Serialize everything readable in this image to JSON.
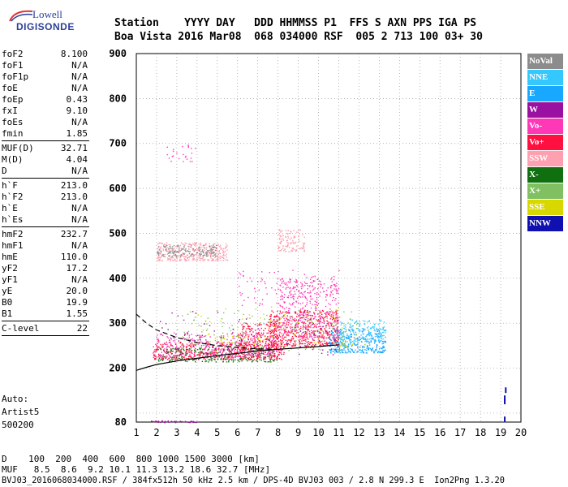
{
  "logo": {
    "line1": "Lowell",
    "line2": "DIGISONDE"
  },
  "header": {
    "row1": "Station    YYYY DAY   DDD HHMMSS P1  FFS S AXN PPS IGA PS",
    "row2": "Boa Vista 2016 Mar08  068 034000 RSF  005 2 713 100 03+ 30"
  },
  "params": [
    {
      "k": "foF2",
      "v": "8.100"
    },
    {
      "k": "foF1",
      "v": "N/A"
    },
    {
      "k": "foF1p",
      "v": "N/A"
    },
    {
      "k": "foE",
      "v": "N/A"
    },
    {
      "k": "foEp",
      "v": "0.43"
    },
    {
      "k": "fxI",
      "v": "9.10"
    },
    {
      "k": "foEs",
      "v": "N/A"
    },
    {
      "k": "fmin",
      "v": "1.85"
    },
    {
      "k": "MUF(D)",
      "v": "32.71"
    },
    {
      "k": "M(D)",
      "v": "4.04"
    },
    {
      "k": "D",
      "v": "N/A"
    },
    {
      "k": "h`F",
      "v": "213.0"
    },
    {
      "k": "h`F2",
      "v": "213.0"
    },
    {
      "k": "h`E",
      "v": "N/A"
    },
    {
      "k": "h`Es",
      "v": "N/A"
    },
    {
      "k": "hmF2",
      "v": "232.7"
    },
    {
      "k": "hmF1",
      "v": "N/A"
    },
    {
      "k": "hmE",
      "v": "110.0"
    },
    {
      "k": "yF2",
      "v": "17.2"
    },
    {
      "k": "yF1",
      "v": "N/A"
    },
    {
      "k": "yE",
      "v": "20.0"
    },
    {
      "k": "B0",
      "v": "19.9"
    },
    {
      "k": "B1",
      "v": "1.55"
    },
    {
      "k": "C-level",
      "v": "22"
    }
  ],
  "auto": {
    "l1": "Auto:",
    "l2": "Artist5",
    "l3": "500200"
  },
  "legend": [
    {
      "label": "NoVal",
      "color": "#8c8c8c"
    },
    {
      "label": "NNE",
      "color": "#35c8ff"
    },
    {
      "label": "E",
      "color": "#18a8ff"
    },
    {
      "label": "W",
      "color": "#9a10a0"
    },
    {
      "label": "Vo-",
      "color": "#ff38b8"
    },
    {
      "label": "Vo+",
      "color": "#ff1040"
    },
    {
      "label": "SSW",
      "color": "#ffa0b0"
    },
    {
      "label": "X-",
      "color": "#107010"
    },
    {
      "label": "X+",
      "color": "#80c060"
    },
    {
      "label": "SSE",
      "color": "#d8d800"
    },
    {
      "label": "NNW",
      "color": "#1010b0"
    }
  ],
  "chart_data": {
    "type": "scatter",
    "xlim": [
      1,
      20
    ],
    "ylim": [
      80,
      900
    ],
    "x_ticks": [
      1,
      2,
      3,
      4,
      5,
      6,
      7,
      8,
      9,
      10,
      11,
      12,
      13,
      14,
      15,
      16,
      17,
      18,
      19,
      20
    ],
    "y_ticks": [
      100,
      200,
      300,
      400,
      500,
      600,
      700,
      800,
      900
    ],
    "y_tick_labels": [
      "",
      "200",
      "300",
      "400",
      "500",
      "600",
      "700",
      "800",
      "900"
    ],
    "y_bottom_label": "80",
    "grid": true,
    "profile_solid": [
      [
        1,
        195
      ],
      [
        1.5,
        202
      ],
      [
        2,
        208
      ],
      [
        3,
        216
      ],
      [
        4,
        222
      ],
      [
        5,
        228
      ],
      [
        6,
        233
      ],
      [
        7,
        238
      ],
      [
        8,
        242
      ],
      [
        9,
        245
      ],
      [
        10,
        248
      ],
      [
        11,
        252
      ]
    ],
    "profile_dashed": [
      [
        1,
        320
      ],
      [
        1.5,
        300
      ],
      [
        2,
        285
      ],
      [
        3,
        268
      ],
      [
        4,
        257
      ],
      [
        5,
        250
      ],
      [
        6,
        246
      ],
      [
        7,
        243
      ],
      [
        8,
        242
      ]
    ],
    "clusters": [
      {
        "color": "#ff1040",
        "xr": [
          1.8,
          8.3
        ],
        "yr": [
          220,
          260
        ],
        "n": 500
      },
      {
        "color": "#ff38b8",
        "xr": [
          1.8,
          8.0
        ],
        "yr": [
          225,
          280
        ],
        "n": 300
      },
      {
        "color": "#ff1040",
        "xr": [
          7.5,
          11
        ],
        "yr": [
          250,
          330
        ],
        "n": 500
      },
      {
        "color": "#ff38b8",
        "xr": [
          8,
          11
        ],
        "yr": [
          270,
          400
        ],
        "n": 350
      },
      {
        "color": "#ff1040",
        "xr": [
          6,
          8
        ],
        "yr": [
          240,
          300
        ],
        "n": 200
      },
      {
        "color": "#18a8ff",
        "xr": [
          10.5,
          13.3
        ],
        "yr": [
          235,
          290
        ],
        "n": 350
      },
      {
        "color": "#35c8ff",
        "xr": [
          11,
          13.3
        ],
        "yr": [
          260,
          310
        ],
        "n": 150
      },
      {
        "color": "#ffa0b0",
        "xr": [
          2,
          5.5
        ],
        "yr": [
          440,
          480
        ],
        "n": 350
      },
      {
        "color": "#ffa0b0",
        "xr": [
          8,
          9.3
        ],
        "yr": [
          460,
          510
        ],
        "n": 120
      },
      {
        "color": "#8c8c8c",
        "xr": [
          2,
          5
        ],
        "yr": [
          450,
          475
        ],
        "n": 150
      },
      {
        "color": "#107010",
        "xr": [
          2,
          8
        ],
        "yr": [
          215,
          245
        ],
        "n": 200
      },
      {
        "color": "#80c060",
        "xr": [
          3,
          12
        ],
        "yr": [
          240,
          330
        ],
        "n": 180
      },
      {
        "color": "#d8d800",
        "xr": [
          4,
          12.5
        ],
        "yr": [
          250,
          340
        ],
        "n": 100
      },
      {
        "color": "#9a10a0",
        "xr": [
          2,
          11
        ],
        "yr": [
          230,
          330
        ],
        "n": 150
      },
      {
        "color": "#ff38b8",
        "xr": [
          2.5,
          4
        ],
        "yr": [
          660,
          700
        ],
        "n": 25
      },
      {
        "color": "#9a10a0",
        "xr": [
          1.5,
          4
        ],
        "yr": [
          80,
          84
        ],
        "n": 40
      },
      {
        "color": "#ff38b8",
        "xr": [
          6,
          11
        ],
        "yr": [
          340,
          420
        ],
        "n": 120
      }
    ],
    "nnw_marks": [
      [
        19.2,
        125
      ],
      [
        19.2,
        132
      ],
      [
        19.25,
        150
      ],
      [
        19.2,
        85
      ]
    ]
  },
  "footer": {
    "d_row": "D    100  200  400  600  800 1000 1500 3000 [km]",
    "muf_row": "MUF   8.5  8.6  9.2 10.1 11.3 13.2 18.6 32.7 [MHz]",
    "file_row": "BVJ03_2016068034000.RSF / 384fx512h 50 kHz 2.5 km / DPS-4D BVJ03 003 / 2.8 N 299.3 E  Ion2Png 1.3.20"
  }
}
